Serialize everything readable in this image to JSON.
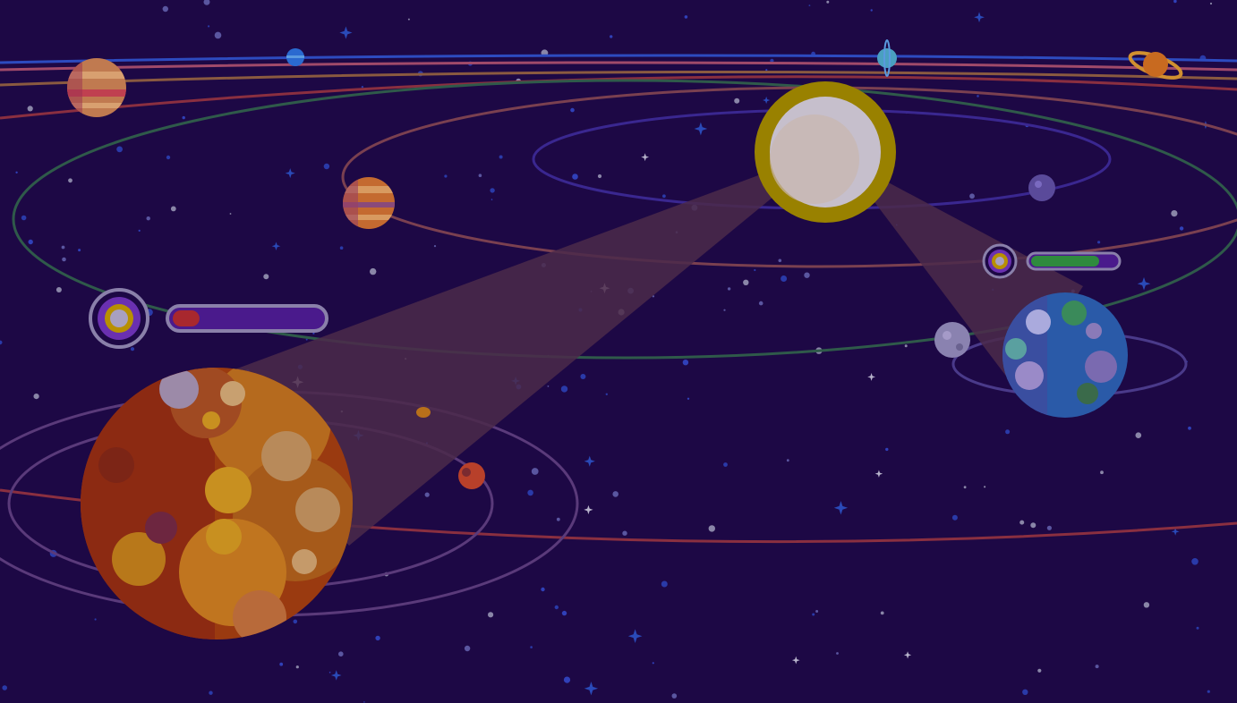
{
  "game": {
    "type": "space-conquest",
    "overlay": "dimmed",
    "colors": {
      "background": "#1d0845",
      "sun": "#f5c400",
      "player_health": "#d1343b",
      "enemy_health": "#3aa84a",
      "bar_track": "#4a1a8c",
      "bar_border": "#a79ccc",
      "ring_gold": "#f0b020",
      "ring_purple": "#7a3ec0"
    },
    "player_planet": {
      "name_icon": "lava-planet",
      "health": 0.18
    },
    "enemy_planet": {
      "name_icon": "earth-planet",
      "health": 0.8
    },
    "icons": [
      "sun",
      "lava-planet",
      "earth-planet",
      "gas-giant",
      "moon",
      "saturn",
      "neptune",
      "uranus",
      "mars",
      "asteroid",
      "target-marker"
    ]
  }
}
